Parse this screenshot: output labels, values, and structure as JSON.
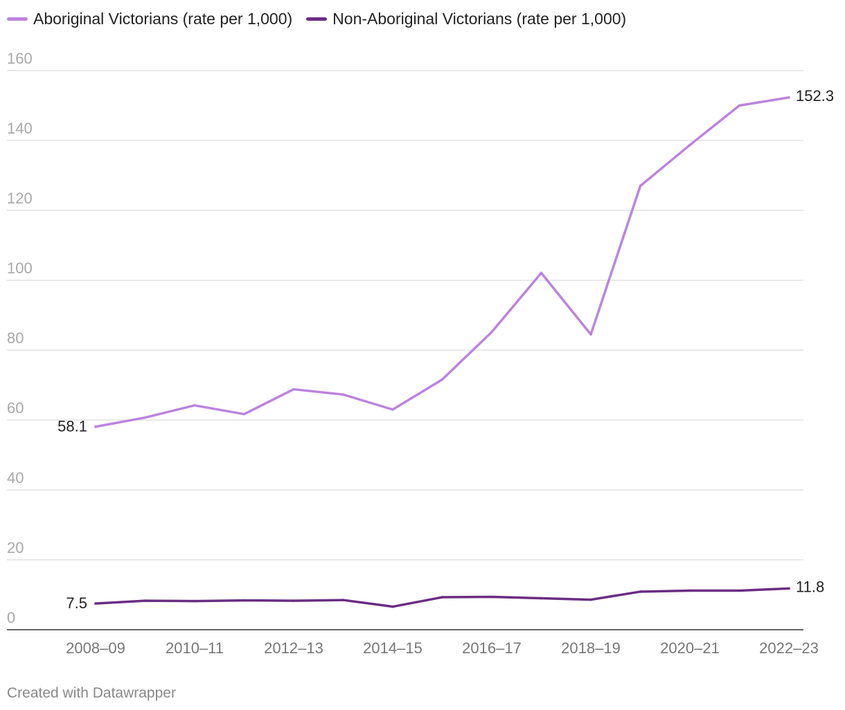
{
  "chart_data": {
    "type": "line",
    "title": "",
    "xlabel": "",
    "ylabel": "",
    "ylim": [
      0,
      160
    ],
    "yticks": [
      0,
      20,
      40,
      60,
      80,
      100,
      120,
      140,
      160
    ],
    "categories": [
      "2008–09",
      "2009–10",
      "2010–11",
      "2011–12",
      "2012–13",
      "2013–14",
      "2014–15",
      "2015–16",
      "2016–17",
      "2017–18",
      "2018–19",
      "2019–20",
      "2020–21",
      "2021–22",
      "2022–23"
    ],
    "xtick_labels": [
      "2008–09",
      "2010–11",
      "2012–13",
      "2014–15",
      "2016–17",
      "2018–19",
      "2020–21",
      "2022–23"
    ],
    "series": [
      {
        "name": "Aboriginal Victorians (rate per 1,000)",
        "color": "#bb84dc",
        "values": [
          58.1,
          60.7,
          64.2,
          61.7,
          68.8,
          67.3,
          63.0,
          71.6,
          85.2,
          102.1,
          84.5,
          127.0,
          138.7,
          150.0,
          152.3
        ],
        "start_label": "58.1",
        "end_label": "152.3"
      },
      {
        "name": "Non-Aboriginal Victorians (rate per 1,000)",
        "color": "#6a2d82",
        "values": [
          7.5,
          8.3,
          8.2,
          8.4,
          8.3,
          8.5,
          6.6,
          9.3,
          9.4,
          9.0,
          8.6,
          10.9,
          11.2,
          11.2,
          11.8
        ],
        "start_label": "7.5",
        "end_label": "11.8"
      }
    ],
    "grid": true,
    "legend": "top-left"
  },
  "footer": "Created with Datawrapper"
}
